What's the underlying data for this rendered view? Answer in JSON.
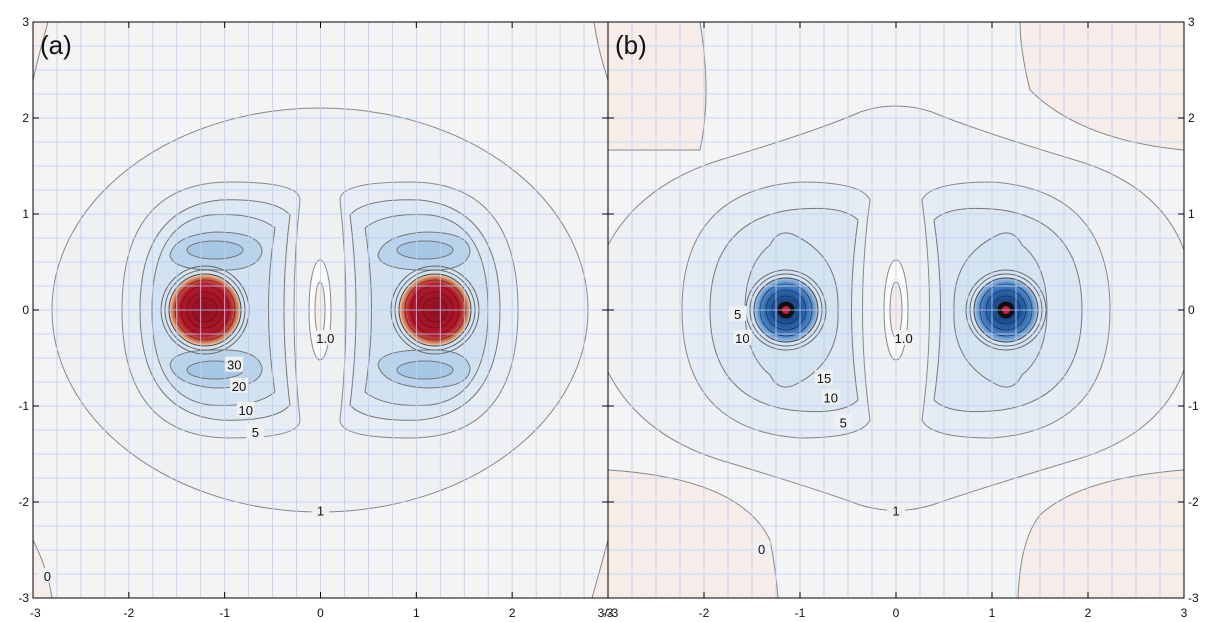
{
  "chart_data": [
    {
      "type": "contour",
      "panel_label": "(a)",
      "xlim": [
        -3,
        3
      ],
      "ylim": [
        -3,
        3
      ],
      "x_ticks": [
        "-3",
        "-2",
        "-1",
        "0",
        "1",
        "2"
      ],
      "y_ticks": [
        "-3",
        "-2",
        "-1",
        "0",
        "1",
        "2",
        "3"
      ],
      "grid": true,
      "centers": [
        [
          -1.2,
          0
        ],
        [
          1.2,
          0
        ]
      ],
      "contour_labels": [
        {
          "text": "30",
          "x": -0.9,
          "y": -0.58
        },
        {
          "text": "20",
          "x": -0.85,
          "y": -0.8
        },
        {
          "text": "10",
          "x": -0.78,
          "y": -1.05
        },
        {
          "text": "5",
          "x": -0.68,
          "y": -1.28
        },
        {
          "text": "1",
          "x": 0.0,
          "y": -2.1
        },
        {
          "text": "1.0",
          "x": 0.05,
          "y": -0.3
        },
        {
          "text": "0",
          "x": -2.85,
          "y": -2.78
        }
      ]
    },
    {
      "type": "contour",
      "panel_label": "(b)",
      "xlim": [
        -3,
        3
      ],
      "ylim": [
        -3,
        3
      ],
      "x_ticks": [
        "-3",
        "-2",
        "-1",
        "0",
        "1",
        "2",
        "3"
      ],
      "y_ticks": [
        "-3",
        "-2",
        "-1",
        "0",
        "1",
        "2",
        "3"
      ],
      "grid": true,
      "centers": [
        [
          -1.15,
          0
        ],
        [
          1.15,
          0
        ]
      ],
      "contour_labels": [
        {
          "text": "5",
          "x": -1.65,
          "y": -0.05
        },
        {
          "text": "10",
          "x": -1.6,
          "y": -0.3
        },
        {
          "text": "15",
          "x": -0.75,
          "y": -0.72
        },
        {
          "text": "10",
          "x": -0.68,
          "y": -0.92
        },
        {
          "text": "5",
          "x": -0.55,
          "y": -1.18
        },
        {
          "text": "1",
          "x": 0.0,
          "y": -2.1
        },
        {
          "text": "1.0",
          "x": 0.08,
          "y": -0.3
        },
        {
          "text": "0",
          "x": -1.4,
          "y": -2.5
        }
      ]
    }
  ],
  "colors": {
    "background": "#f4f4f4",
    "grid": "#b8cdf6",
    "contour_line": "#777777",
    "negative_fill": "#f9ece6",
    "a_core": "#b3172c",
    "b_core": "#2a64aa"
  }
}
